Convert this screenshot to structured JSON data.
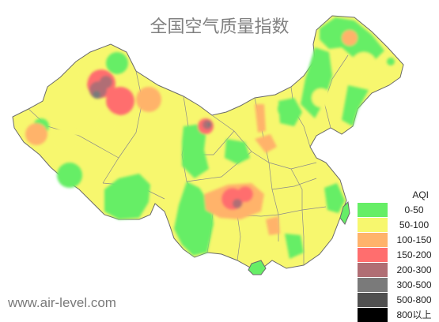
{
  "title": "全国空气质量指数",
  "watermark": "www.air-level.com",
  "legend": {
    "title": "AQI",
    "items": [
      {
        "label": "0-50",
        "color": "#66ee66"
      },
      {
        "label": "50-100",
        "color": "#f7f76e"
      },
      {
        "label": "100-150",
        "color": "#ffb36b"
      },
      {
        "label": "150-200",
        "color": "#ff6e6e"
      },
      {
        "label": "200-300",
        "color": "#b06e74"
      },
      {
        "label": "300-500",
        "color": "#7a7a7a"
      },
      {
        "label": "500-800",
        "color": "#505050"
      },
      {
        "label": "800以上",
        "color": "#000000"
      }
    ]
  }
}
